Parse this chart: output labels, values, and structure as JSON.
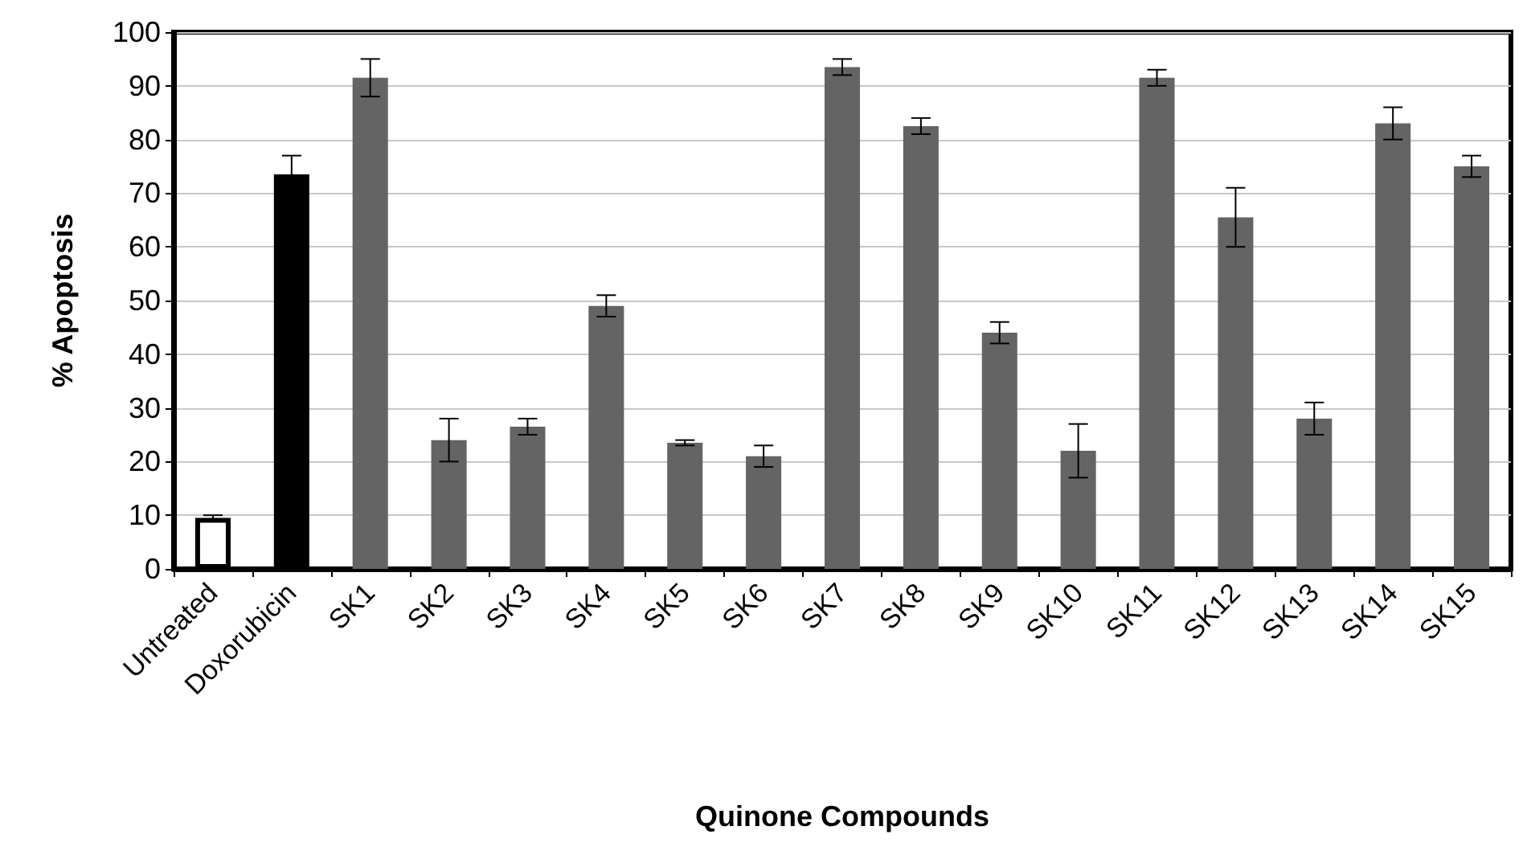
{
  "chart_data": {
    "type": "bar",
    "xlabel": "Quinone Compounds",
    "ylabel": "% Apoptosis",
    "categories": [
      "Untreated",
      "Doxorubicin",
      "SK1",
      "SK2",
      "SK3",
      "SK4",
      "SK5",
      "SK6",
      "SK7",
      "SK8",
      "SK9",
      "SK10",
      "SK11",
      "SK12",
      "SK13",
      "SK14",
      "SK15"
    ],
    "values": [
      9.5,
      73.5,
      91.5,
      24,
      26.5,
      49,
      23.5,
      21,
      93.5,
      82.5,
      44,
      22,
      91.5,
      65.5,
      28,
      83,
      75
    ],
    "errors": [
      0.5,
      3.5,
      3.5,
      4,
      1.5,
      2,
      0.5,
      2,
      1.5,
      1.5,
      2,
      5,
      1.5,
      5.5,
      3,
      3,
      2
    ],
    "colors": [
      "#ffffff",
      "#000000",
      "#646464",
      "#646464",
      "#646464",
      "#646464",
      "#646464",
      "#646464",
      "#646464",
      "#646464",
      "#646464",
      "#646464",
      "#646464",
      "#646464",
      "#646464",
      "#646464",
      "#646464"
    ],
    "ylim": [
      0,
      100
    ],
    "yticks": [
      0,
      10,
      20,
      30,
      40,
      50,
      60,
      70,
      80,
      90,
      100
    ],
    "grid": "y"
  }
}
